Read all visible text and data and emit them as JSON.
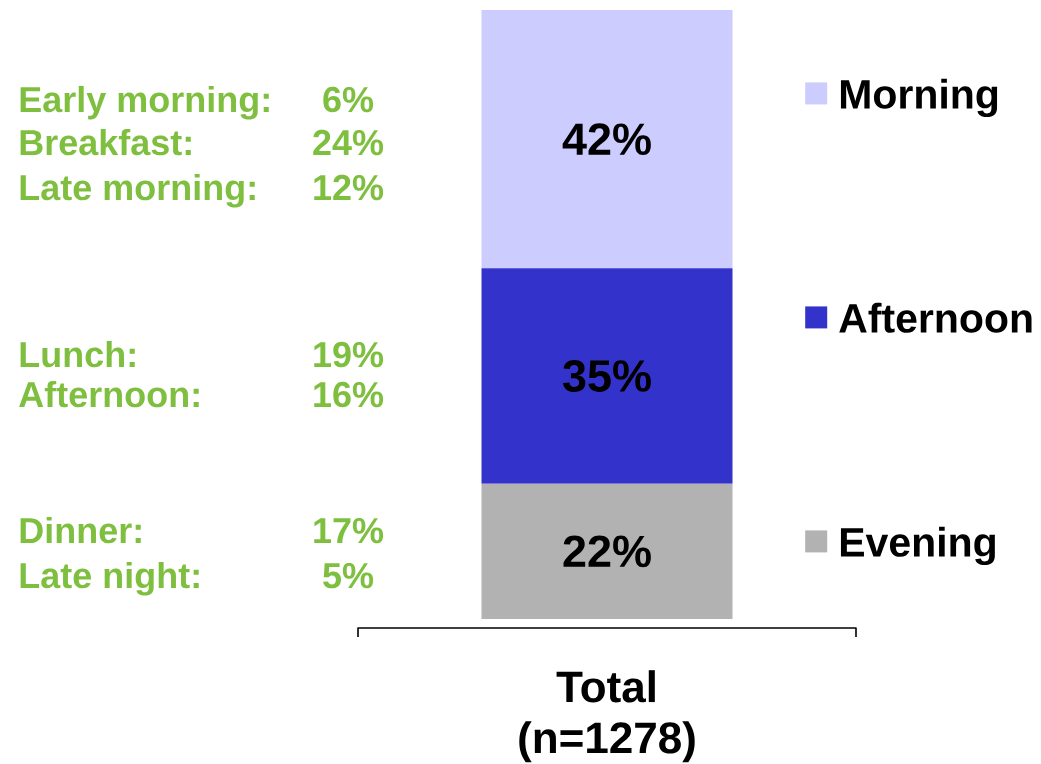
{
  "chart_data": {
    "type": "bar",
    "stacked": true,
    "categories": [
      "Total (n=1278)"
    ],
    "series": [
      {
        "name": "Evening",
        "color": "#b2b2b2",
        "values": [
          22
        ],
        "value_labels": [
          "22%"
        ]
      },
      {
        "name": "Afternoon",
        "color": "#3333cc",
        "values": [
          35
        ],
        "value_labels": [
          "35%"
        ]
      },
      {
        "name": "Morning",
        "color": "#ccccff",
        "values": [
          42
        ],
        "value_labels": [
          "42%"
        ]
      }
    ],
    "legend": "right",
    "annotations": [
      "Early morning:",
      "6%",
      "Breakfast:",
      "24%",
      "Late morning:",
      "12%",
      "Lunch:",
      "19%",
      "Afternoon:",
      "16%",
      "Dinner:",
      "17%",
      "Late night:",
      "5%"
    ]
  }
}
